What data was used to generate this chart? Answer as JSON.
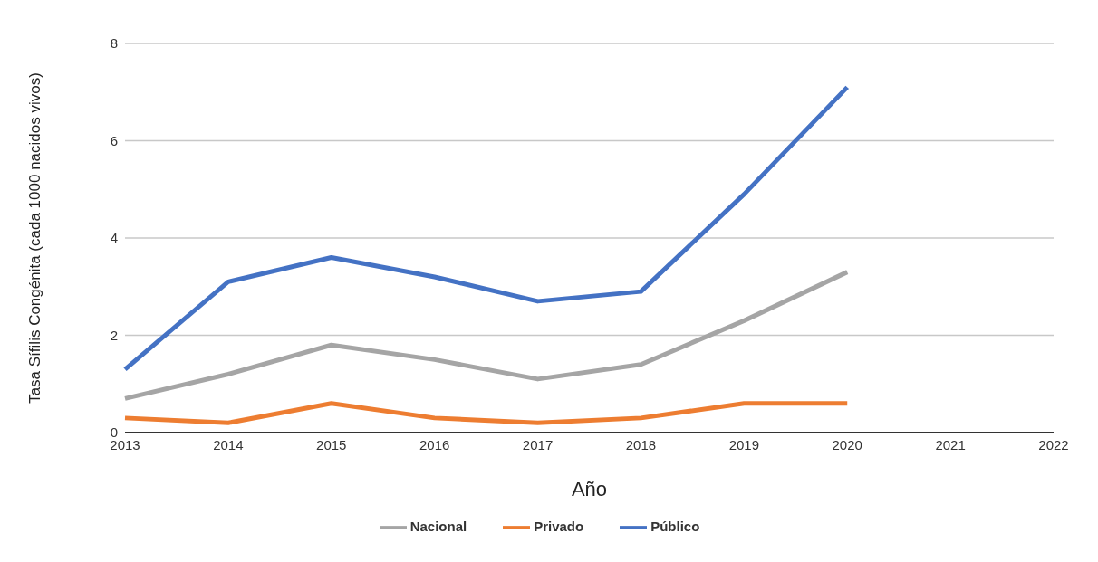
{
  "chart_data": {
    "type": "line",
    "xlabel": "Año",
    "ylabel": "Tasa Sífilis Congénita (cada 1000 nacidos vivos)",
    "categories": [
      "2013",
      "2014",
      "2015",
      "2016",
      "2017",
      "2018",
      "2019",
      "2020",
      "2021",
      "2022"
    ],
    "series": [
      {
        "name": "Público",
        "color": "#4472c4",
        "values": [
          1.3,
          3.1,
          3.6,
          3.2,
          2.7,
          2.9,
          4.9,
          7.1,
          null,
          null
        ]
      },
      {
        "name": "Privado",
        "color": "#ed7d31",
        "values": [
          0.3,
          0.2,
          0.6,
          0.3,
          0.2,
          0.3,
          0.6,
          0.6,
          null,
          null
        ]
      },
      {
        "name": "Nacional",
        "color": "#a5a5a5",
        "values": [
          0.7,
          1.2,
          1.8,
          1.5,
          1.1,
          1.4,
          2.3,
          3.3,
          null,
          null
        ]
      }
    ],
    "ylim": [
      0,
      8
    ],
    "yticks": [
      0,
      2,
      4,
      6,
      8
    ],
    "grid": "y",
    "legend": "bottom",
    "marker": "none",
    "line_style": "solid"
  }
}
